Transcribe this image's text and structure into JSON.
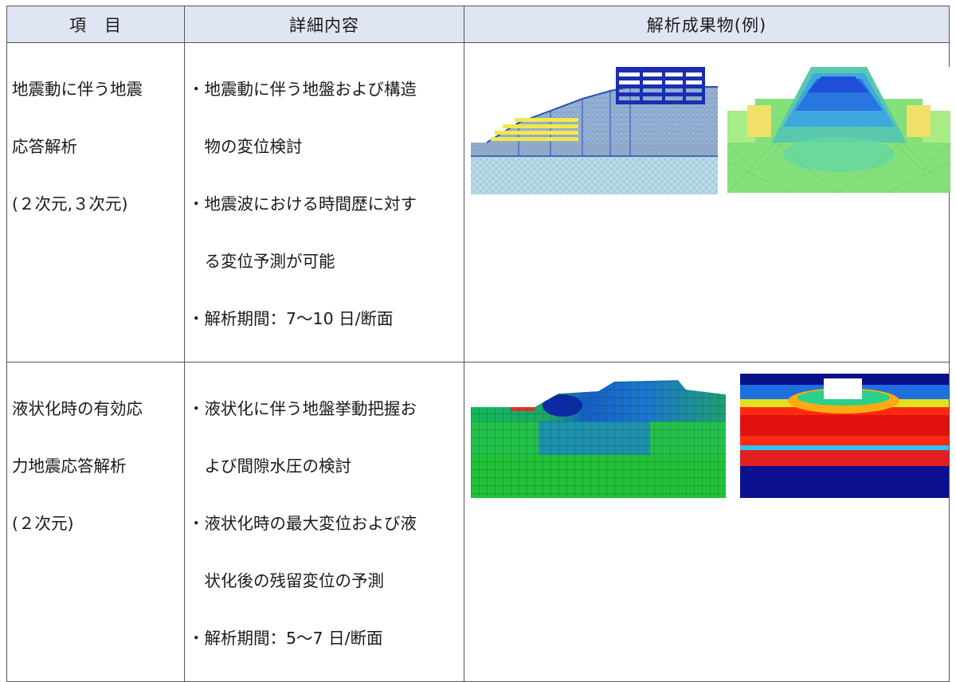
{
  "header": {
    "col1": "項　目",
    "col2": "詳細内容",
    "col3": "解析成果物(例)"
  },
  "rows": [
    {
      "item_lines": [
        "地震動に伴う地震",
        "応答解析",
        "(２次元,３次元)"
      ],
      "detail_lines": [
        "・地震動に伴う地盤および構造",
        "　物の変位検討",
        "・地震波における時間歴に対す",
        "　る変位予測が可能",
        "・解析期間：7～10 日/断面"
      ]
    },
    {
      "item_lines": [
        "液状化時の有効応",
        "力地震応答解析",
        "(２次元)"
      ],
      "detail_lines": [
        "・液状化に伴う地盤挙動把握お",
        "　よび間隙水圧の検討",
        "・液状化時の最大変位および液",
        "　状化後の残留変位の予測",
        "・解析期間：5～7 日/断面"
      ]
    }
  ]
}
